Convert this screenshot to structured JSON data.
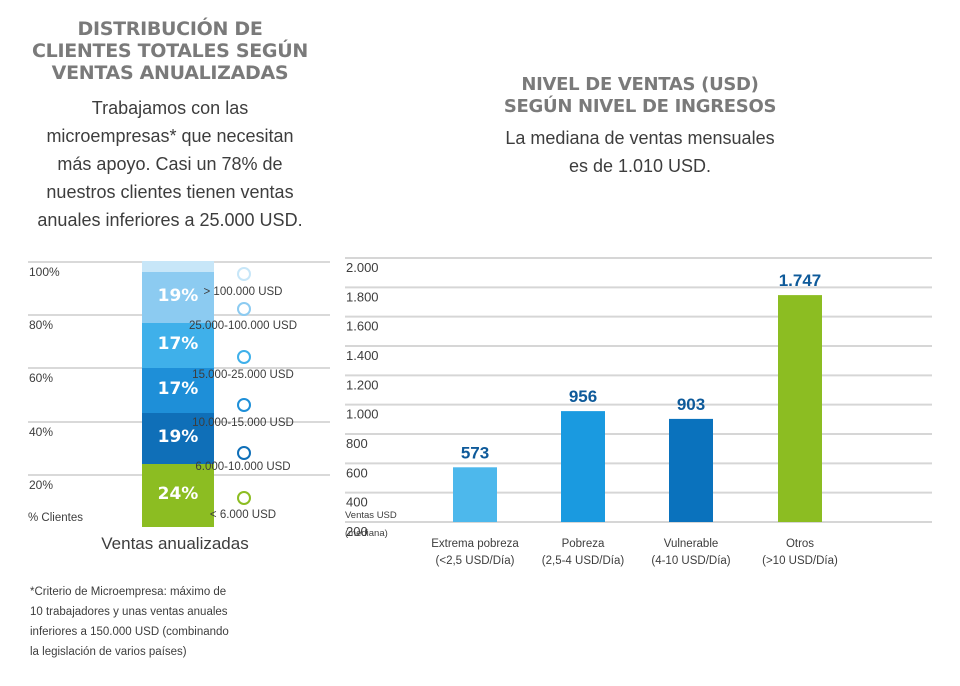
{
  "left": {
    "title": "DISTRIBUCIÓN DE CLIENTES TOTALES SEGÚN VENTAS ANUALIZADAS",
    "title_lines": [
      "DISTRIBUCIÓN DE",
      "CLIENTES TOTALES SEGÚN",
      "VENTAS ANUALIZADAS"
    ],
    "subtitle_lines": [
      "Trabajamos con las",
      "microempresas* que necesitan",
      "más apoyo. Casi un 78% de",
      "nuestros clientes tienen ventas",
      "anuales inferiores a 25.000 USD."
    ],
    "footnote_lines": [
      "*Criterio de Microempresa: máximo de",
      "10 trabajadores y unas ventas anuales",
      "inferiores a 150.000 USD (combinando",
      "la legislación de varios países)"
    ]
  },
  "right": {
    "title_lines": [
      "NIVEL DE VENTAS (USD)",
      "SEGÚN NIVEL DE INGRESOS"
    ],
    "subtitle_lines": [
      "La mediana de ventas mensuales",
      "es de 1.010 USD."
    ]
  },
  "chart_data": [
    {
      "type": "bar",
      "stacked": true,
      "xlabel": "Ventas anualizadas",
      "ylabel": "% Clientes",
      "yticks": [
        "20%",
        "40%",
        "60%",
        "80%",
        "100%"
      ],
      "series": [
        {
          "name": "< 6.000 USD",
          "value": 24,
          "label": "24%",
          "color": "#8cbd22"
        },
        {
          "name": "6.000-10.000 USD",
          "value": 19,
          "label": "19%",
          "color": "#0f6fb8"
        },
        {
          "name": "10.000-15.000 USD",
          "value": 17,
          "label": "17%",
          "color": "#1e8fd8"
        },
        {
          "name": "15.000-25.000 USD",
          "value": 17,
          "label": "17%",
          "color": "#3fb0ea"
        },
        {
          "name": "25.000-100.000 USD",
          "value": 19,
          "label": "19%",
          "color": "#8ccbf1"
        },
        {
          "name": "> 100.000 USD",
          "value": 4,
          "label": "",
          "color": "#c7e6f8"
        }
      ],
      "legend_markers": [
        "#c7e6f8",
        "#8ccbf1",
        "#3fb0ea",
        "#1e8fd8",
        "#0f6fb8",
        "#8cbd22"
      ]
    },
    {
      "type": "bar",
      "ylabel_lines": [
        "Ventas USD",
        "(mediana)"
      ],
      "ylim": [
        200,
        2000
      ],
      "yticks": [
        200,
        400,
        600,
        800,
        1000,
        1200,
        1400,
        1600,
        1800,
        2000
      ],
      "ytick_labels": [
        "200",
        "400",
        "600",
        "800",
        "1.000",
        "1.200",
        "1.400",
        "1.600",
        "1.800",
        "2.000"
      ],
      "categories": [
        {
          "lines": [
            "Extrema pobreza",
            "(<2,5 USD/Día)"
          ],
          "value": 573,
          "label": "573",
          "color": "#4db8ec"
        },
        {
          "lines": [
            "Pobreza",
            "(2,5-4 USD/Día)"
          ],
          "value": 956,
          "label": "956",
          "color": "#1a9ae0"
        },
        {
          "lines": [
            "Vulnerable",
            "(4-10 USD/Día)"
          ],
          "value": 903,
          "label": "903",
          "color": "#0a72bd"
        },
        {
          "lines": [
            "Otros",
            "(>10 USD/Día)"
          ],
          "value": 1747,
          "label": "1.747",
          "color": "#8cbd22"
        }
      ],
      "value_label_color": "#0e5a9a"
    }
  ]
}
